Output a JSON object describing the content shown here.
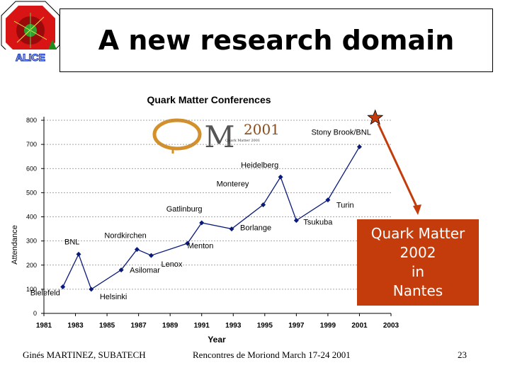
{
  "slide": {
    "title": "A new research domain",
    "logo_text": "ALICE",
    "footer": {
      "author": "Ginés MARTINEZ, SUBATECH",
      "event": "Rencontres de Moriond March 17-24 2001",
      "page": "23"
    }
  },
  "callout": {
    "text": "Quark Matter\n2002\nin\nNantes",
    "color": "#c43c0c"
  },
  "qm_logo": {
    "year": "2001",
    "sub": "Quark Matter 2001"
  },
  "chart_data": {
    "type": "line",
    "title": "Quark Matter Conferences",
    "xlabel": "Year",
    "ylabel": "Attendance",
    "xlim": [
      1981,
      2003
    ],
    "ylim": [
      0,
      800
    ],
    "x_ticks": [
      "1981",
      "1983",
      "1985",
      "1987",
      "1989",
      "1991",
      "1993",
      "1995",
      "1997",
      "1999",
      "2001",
      "2003"
    ],
    "y_ticks": [
      "0",
      "100",
      "200",
      "300",
      "400",
      "500",
      "600",
      "700",
      "800"
    ],
    "grid": "horizontal dashed",
    "series_color": "#0a1a7a",
    "points": [
      {
        "x": 1982.2,
        "y": 110,
        "label": "Bielefeld"
      },
      {
        "x": 1983.2,
        "y": 245,
        "label": "BNL"
      },
      {
        "x": 1984.0,
        "y": 100,
        "label": "Helsinki"
      },
      {
        "x": 1985.9,
        "y": 180,
        "label": "Asilomar"
      },
      {
        "x": 1986.9,
        "y": 265,
        "label": "Nordkirchen"
      },
      {
        "x": 1987.8,
        "y": 240,
        "label": "Lenox"
      },
      {
        "x": 1990.1,
        "y": 290,
        "label": "Menton"
      },
      {
        "x": 1991.0,
        "y": 375,
        "label": "Gatlinburg"
      },
      {
        "x": 1992.9,
        "y": 350,
        "label": "Borlange"
      },
      {
        "x": 1994.9,
        "y": 450,
        "label": "Monterey"
      },
      {
        "x": 1996.0,
        "y": 565,
        "label": "Heidelberg"
      },
      {
        "x": 1997.0,
        "y": 385,
        "label": "Tsukuba"
      },
      {
        "x": 1999.0,
        "y": 470,
        "label": "Turin"
      },
      {
        "x": 2001.0,
        "y": 690,
        "label": "Stony Brook/BNL"
      }
    ],
    "star": {
      "x": 2002.0,
      "y": 810
    },
    "star_color": "#c43c0c"
  }
}
